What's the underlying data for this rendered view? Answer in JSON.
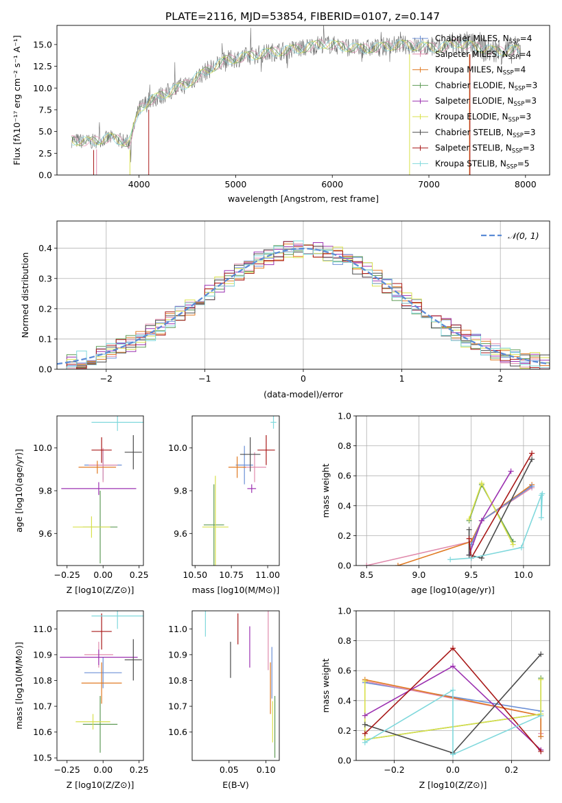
{
  "figure_title": "PLATE=2116, MJD=53854, FIBERID=0107, z=0.147",
  "series": [
    {
      "label": "Chabrier MILES, N",
      "sub": "SSP",
      "tail": "=4",
      "color": "#6b8fd6"
    },
    {
      "label": "Salpeter MILES, N",
      "sub": "SSP",
      "tail": "=4",
      "color": "#e08aac"
    },
    {
      "label": "Kroupa MILES, N",
      "sub": "SSP",
      "tail": "=4",
      "color": "#e07a22"
    },
    {
      "label": "Chabrier ELODIE, N",
      "sub": "SSP",
      "tail": "=3",
      "color": "#5e9a55"
    },
    {
      "label": "Salpeter ELODIE, N",
      "sub": "SSP",
      "tail": "=3",
      "color": "#9b30b0"
    },
    {
      "label": "Kroupa ELODIE, N",
      "sub": "SSP",
      "tail": "=3",
      "color": "#d8e04a"
    },
    {
      "label": "Chabrier STELIB, N",
      "sub": "SSP",
      "tail": "=3",
      "color": "#4a4a4a"
    },
    {
      "label": "Salpeter STELIB, N",
      "sub": "SSP",
      "tail": "=3",
      "color": "#a81818"
    },
    {
      "label": "Kroupa STELIB, N",
      "sub": "SSP",
      "tail": "=5",
      "color": "#7fd8dc"
    }
  ],
  "chart_data": [
    {
      "id": "spectrum",
      "type": "line",
      "xlabel": "wavelength [Angstrom, rest frame]",
      "ylabel": "Flux [fλ10⁻¹⁷ erg cm⁻² s⁻¹ A⁻¹]",
      "xlim": [
        3150,
        8250
      ],
      "ylim": [
        0,
        17.2
      ],
      "xticks": [
        4000,
        5000,
        6000,
        7000,
        8000
      ],
      "yticks": [
        0.0,
        2.5,
        5.0,
        7.5,
        10.0,
        12.5,
        15.0
      ],
      "grid": false,
      "legend": "top-right",
      "envelope": {
        "x": [
          3300,
          3500,
          3700,
          3900,
          4000,
          4100,
          4300,
          4500,
          4700,
          4900,
          5100,
          5300,
          5500,
          5700,
          5900,
          6100,
          6300,
          6500,
          6700,
          6900,
          7100,
          7300,
          7500,
          7700,
          7900
        ],
        "y": [
          4.0,
          3.8,
          4.3,
          3.7,
          7.5,
          8.5,
          9.5,
          10.5,
          12.0,
          13.2,
          13.6,
          14.0,
          14.3,
          14.6,
          15.1,
          14.8,
          14.5,
          14.7,
          15.0,
          14.8,
          14.6,
          15.2,
          14.7,
          14.2,
          14.4
        ]
      }
    },
    {
      "id": "residuals",
      "type": "line",
      "xlabel": "(data-model)/error",
      "ylabel": "Normed distribution",
      "xlim": [
        -2.5,
        2.5
      ],
      "ylim": [
        0,
        0.49
      ],
      "xticks": [
        -2,
        -1,
        0,
        1,
        2
      ],
      "yticks": [
        0.0,
        0.1,
        0.2,
        0.3,
        0.4
      ],
      "grid": true,
      "legend": "top-right",
      "reference_label": "𝒩(0, 1)",
      "reference_curve": {
        "mu": 0,
        "sigma": 1
      }
    },
    {
      "id": "age-vs-Z",
      "type": "scatter",
      "xlabel": "Z [log10(Z/Z⊙)]",
      "ylabel": "age  [log10(age/yr)]",
      "xlim": [
        -0.32,
        0.28
      ],
      "ylim": [
        9.45,
        10.15
      ],
      "xticks": [
        -0.25,
        0.0,
        0.25
      ],
      "yticks": [
        9.6,
        9.8,
        10.0
      ],
      "points": [
        {
          "s": 0,
          "x": 0.0,
          "y": 9.92,
          "xerr": 0.13,
          "yerr": 0.07
        },
        {
          "s": 1,
          "x": 0.0,
          "y": 9.92,
          "xerr": 0.1,
          "yerr": 0.08
        },
        {
          "s": 2,
          "x": -0.04,
          "y": 9.91,
          "xerr": 0.13,
          "yerr": 0.03
        },
        {
          "s": 3,
          "x": -0.02,
          "y": 9.63,
          "xerr": 0.12,
          "yerr": 0.17
        },
        {
          "s": 4,
          "x": -0.03,
          "y": 9.81,
          "xerr": 0.26,
          "yerr": 0.03
        },
        {
          "s": 5,
          "x": -0.08,
          "y": 9.63,
          "xerr": 0.13,
          "yerr": 0.05
        },
        {
          "s": 6,
          "x": 0.21,
          "y": 9.98,
          "xerr": 0.06,
          "yerr": 0.08
        },
        {
          "s": 7,
          "x": -0.01,
          "y": 9.99,
          "xerr": 0.07,
          "yerr": 0.06
        },
        {
          "s": 8,
          "x": 0.1,
          "y": 10.12,
          "xerr": 0.18,
          "yerr": 0.04
        }
      ]
    },
    {
      "id": "age-vs-mass",
      "type": "scatter",
      "xlabel": "mass [log10(M/M⊙)]",
      "ylabel": "",
      "xlim": [
        10.48,
        11.08
      ],
      "ylim": [
        9.45,
        10.15
      ],
      "xticks": [
        10.5,
        10.75,
        11.0
      ],
      "xtick_labels": [
        "10.50",
        "10.75",
        "11.00"
      ],
      "yticks": [
        9.6,
        9.8,
        10.0
      ],
      "points": [
        {
          "s": 0,
          "x": 10.84,
          "y": 9.92,
          "xerr": 0.06,
          "yerr": 0.09
        },
        {
          "s": 1,
          "x": 10.91,
          "y": 9.91,
          "xerr": 0.08,
          "yerr": 0.07
        },
        {
          "s": 2,
          "x": 10.79,
          "y": 9.91,
          "xerr": 0.06,
          "yerr": 0.05
        },
        {
          "s": 3,
          "x": 10.63,
          "y": 9.64,
          "xerr": 0.07,
          "yerr": 0.19
        },
        {
          "s": 4,
          "x": 10.89,
          "y": 9.81,
          "xerr": 0.03,
          "yerr": 0.02
        },
        {
          "s": 5,
          "x": 10.64,
          "y": 9.63,
          "xerr": 0.09,
          "yerr": 0.24
        },
        {
          "s": 6,
          "x": 10.88,
          "y": 9.97,
          "xerr": 0.07,
          "yerr": 0.08
        },
        {
          "s": 7,
          "x": 10.99,
          "y": 9.99,
          "xerr": 0.06,
          "yerr": 0.07
        },
        {
          "s": 8,
          "x": 11.04,
          "y": 10.12,
          "xerr": 0.02,
          "yerr": 0.03
        }
      ]
    },
    {
      "id": "mass-weight-vs-age",
      "type": "line",
      "xlabel": "age  [log10(age/yr)]",
      "ylabel": "mass weight",
      "xlim": [
        8.4,
        10.25
      ],
      "ylim": [
        0,
        1.0
      ],
      "xticks": [
        8.5,
        9.0,
        9.5,
        10.0
      ],
      "yticks": [
        0.0,
        0.2,
        0.4,
        0.6,
        0.8,
        1.0
      ],
      "grid": true,
      "lines": [
        {
          "s": 1,
          "x": [
            8.5,
            9.5,
            9.6,
            10.08
          ],
          "y": [
            0.0,
            0.16,
            0.3,
            0.52
          ]
        },
        {
          "s": 2,
          "x": [
            8.8,
            9.5,
            9.6,
            10.08
          ],
          "y": [
            0.0,
            0.16,
            0.3,
            0.54
          ]
        },
        {
          "s": 0,
          "x": [
            9.5,
            9.6,
            10.08
          ],
          "y": [
            0.14,
            0.3,
            0.53
          ]
        },
        {
          "s": 3,
          "x": [
            9.48,
            9.6,
            9.9
          ],
          "y": [
            0.3,
            0.54,
            0.16
          ]
        },
        {
          "s": 5,
          "x": [
            9.48,
            9.6,
            9.9
          ],
          "y": [
            0.31,
            0.55,
            0.14
          ]
        },
        {
          "s": 4,
          "x": [
            9.48,
            9.6,
            9.88
          ],
          "y": [
            0.07,
            0.3,
            0.63
          ]
        },
        {
          "s": 6,
          "x": [
            9.48,
            9.48,
            9.6,
            10.08
          ],
          "y": [
            0.24,
            0.07,
            0.05,
            0.71
          ]
        },
        {
          "s": 7,
          "x": [
            9.48,
            9.5,
            10.08
          ],
          "y": [
            0.18,
            0.05,
            0.75
          ]
        },
        {
          "s": 8,
          "x": [
            9.3,
            9.5,
            9.98,
            10.17,
            10.17,
            10.18
          ],
          "y": [
            0.04,
            0.05,
            0.12,
            0.47,
            0.32,
            0.48
          ]
        }
      ]
    },
    {
      "id": "mass-vs-Z",
      "type": "scatter",
      "xlabel": "Z [log10(Z/Z⊙)]",
      "ylabel": "mass [log10(M/M⊙)]",
      "xlim": [
        -0.32,
        0.28
      ],
      "ylim": [
        10.49,
        11.07
      ],
      "xticks": [
        -0.25,
        0.0,
        0.25
      ],
      "yticks": [
        10.5,
        10.6,
        10.7,
        10.8,
        10.9,
        11.0
      ],
      "points": [
        {
          "s": 0,
          "x": 0.0,
          "y": 10.83,
          "xerr": 0.13,
          "yerr": 0.06
        },
        {
          "s": 1,
          "x": -0.03,
          "y": 10.9,
          "xerr": 0.1,
          "yerr": 0.05
        },
        {
          "s": 2,
          "x": -0.01,
          "y": 10.79,
          "xerr": 0.14,
          "yerr": 0.08
        },
        {
          "s": 3,
          "x": -0.02,
          "y": 10.63,
          "xerr": 0.12,
          "yerr": 0.11
        },
        {
          "s": 4,
          "x": -0.03,
          "y": 10.89,
          "xerr": 0.27,
          "yerr": 0.03
        },
        {
          "s": 5,
          "x": -0.07,
          "y": 10.64,
          "xerr": 0.12,
          "yerr": 0.03
        },
        {
          "s": 6,
          "x": 0.21,
          "y": 10.88,
          "xerr": 0.06,
          "yerr": 0.08
        },
        {
          "s": 7,
          "x": -0.01,
          "y": 10.99,
          "xerr": 0.07,
          "yerr": 0.07
        },
        {
          "s": 8,
          "x": 0.1,
          "y": 11.05,
          "xerr": 0.18,
          "yerr": 0.05
        }
      ]
    },
    {
      "id": "mass-vs-ebv",
      "type": "scatter",
      "xlabel": "E(B-V)",
      "ylabel": "",
      "xlim": [
        0.0,
        0.118
      ],
      "ylim": [
        10.49,
        11.07
      ],
      "xticks": [
        0.05,
        0.1
      ],
      "xtick_labels": [
        "0.05",
        "0.10"
      ],
      "yticks": [
        10.6,
        10.7,
        10.8,
        10.9,
        11.0
      ],
      "points": [
        {
          "s": 0,
          "x": 0.108,
          "y": 10.83,
          "yerr": 0.1
        },
        {
          "s": 1,
          "x": 0.103,
          "y": 10.96,
          "yerr": 0.12
        },
        {
          "s": 2,
          "x": 0.106,
          "y": 10.77,
          "yerr": 0.1
        },
        {
          "s": 3,
          "x": 0.112,
          "y": 10.62,
          "yerr": 0.12
        },
        {
          "s": 4,
          "x": 0.078,
          "y": 10.93,
          "yerr": 0.08
        },
        {
          "s": 5,
          "x": 0.109,
          "y": 10.64,
          "yerr": 0.08
        },
        {
          "s": 6,
          "x": 0.052,
          "y": 10.88,
          "yerr": 0.07
        },
        {
          "s": 7,
          "x": 0.062,
          "y": 11.0,
          "yerr": 0.06
        },
        {
          "s": 8,
          "x": 0.018,
          "y": 11.02,
          "yerr": 0.05
        }
      ]
    },
    {
      "id": "mass-weight-vs-Z",
      "type": "line",
      "xlabel": "Z [log10(Z/Z⊙)]",
      "ylabel": "mass weight",
      "xlim": [
        -0.33,
        0.33
      ],
      "ylim": [
        0,
        1.0
      ],
      "xticks": [
        -0.2,
        0.0,
        0.2
      ],
      "yticks": [
        0.0,
        0.2,
        0.4,
        0.6,
        0.8,
        1.0
      ],
      "grid": true,
      "lines": [
        {
          "s": 0,
          "x": [
            -0.3,
            0.3,
            0.3,
            0.3
          ],
          "y": [
            0.52,
            0.33,
            0.16,
            0.33
          ]
        },
        {
          "s": 1,
          "x": [
            -0.3,
            0.3,
            0.3
          ],
          "y": [
            0.53,
            0.3,
            0.18
          ]
        },
        {
          "s": 2,
          "x": [
            -0.3,
            0.3,
            0.3
          ],
          "y": [
            0.54,
            0.3,
            0.16
          ]
        },
        {
          "s": 3,
          "x": [
            -0.3,
            0.3,
            0.3
          ],
          "y": [
            0.14,
            0.31,
            0.55
          ]
        },
        {
          "s": 5,
          "x": [
            -0.3,
            -0.3,
            0.3,
            0.3
          ],
          "y": [
            0.53,
            0.14,
            0.31,
            0.54
          ]
        },
        {
          "s": 4,
          "x": [
            -0.3,
            0.0,
            0.3
          ],
          "y": [
            0.3,
            0.63,
            0.07
          ]
        },
        {
          "s": 6,
          "x": [
            -0.3,
            0.0,
            0.3
          ],
          "y": [
            0.24,
            0.05,
            0.71
          ]
        },
        {
          "s": 7,
          "x": [
            -0.3,
            0.0,
            0.3
          ],
          "y": [
            0.18,
            0.75,
            0.06
          ]
        },
        {
          "s": 8,
          "x": [
            -0.3,
            0.0,
            0.0,
            0.3
          ],
          "y": [
            0.12,
            0.47,
            0.04,
            0.3
          ]
        }
      ]
    }
  ]
}
